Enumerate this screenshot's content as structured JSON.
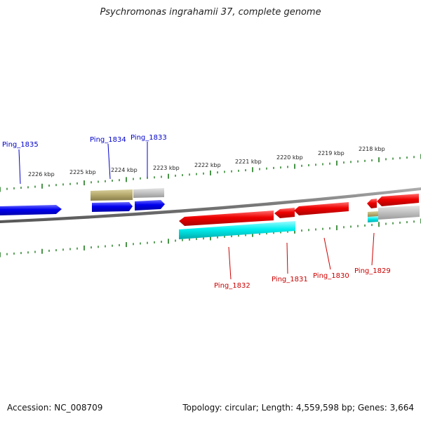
{
  "title": "Psychromonas ingrahamii 37, complete genome",
  "accession": "Accession: NC_008709",
  "summary": "Topology: circular; Length: 4,559,598 bp; Genes: 3,664",
  "colors": {
    "forward_label": "#0000cc",
    "reverse_label": "#cc0000",
    "tick": "#1a7a1a",
    "backbone": "#808080"
  },
  "kbp_labels": [
    "2226 kbp",
    "2225 kbp",
    "2224 kbp",
    "2223 kbp",
    "2222 kbp",
    "2221 kbp",
    "2220 kbp",
    "2219 kbp",
    "2218 kbp"
  ],
  "forward_genes": [
    "Ping_1835",
    "Ping_1834",
    "Ping_1833"
  ],
  "reverse_genes": [
    "Ping_1832",
    "Ping_1831",
    "Ping_1830",
    "Ping_1829"
  ]
}
